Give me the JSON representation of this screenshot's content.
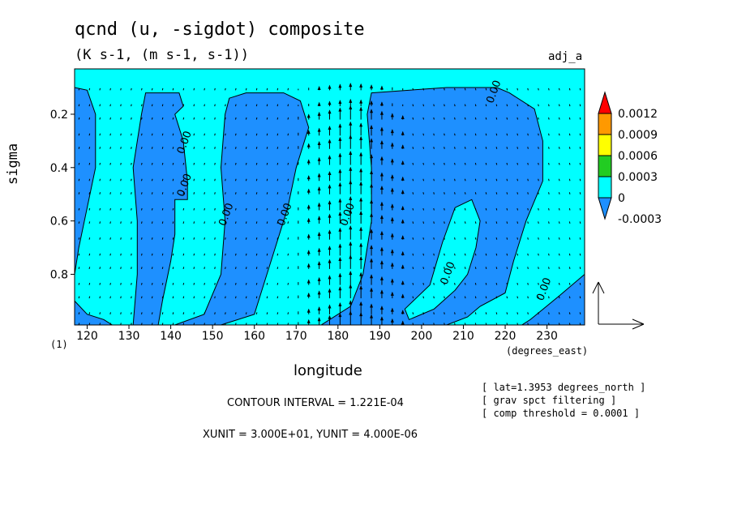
{
  "chart_data": {
    "type": "heatmap",
    "title": "qcnd (u, -sigdot) composite",
    "subtitle": "(K s-1, (m s-1, s-1))",
    "tag": "adj_a",
    "xlabel": "longitude",
    "ylabel": "sigma",
    "x_units": "(degrees_east)",
    "sublabel": "(1)",
    "xlim": [
      117,
      239
    ],
    "ylim": [
      0.03,
      0.99
    ],
    "y_inverted": true,
    "x_ticks": [
      120,
      130,
      140,
      150,
      160,
      170,
      180,
      190,
      200,
      210,
      220,
      230
    ],
    "y_ticks": [
      0.2,
      0.4,
      0.6,
      0.8
    ],
    "contour_label": "0.00",
    "colorbar": {
      "labels": [
        "0.0012",
        "0.0009",
        "0.0006",
        "0.0003",
        "0",
        "-0.0003"
      ],
      "colors": [
        "#ff0000",
        "#ff9900",
        "#ffff00",
        "#22cc22",
        "#00ffff",
        "#1e90ff"
      ]
    },
    "regions": [
      {
        "level": "-0.0003",
        "points": [
          [
            117,
            0.1
          ],
          [
            120,
            0.11
          ],
          [
            122,
            0.2
          ],
          [
            122,
            0.4
          ],
          [
            120,
            0.55
          ],
          [
            118,
            0.7
          ],
          [
            117,
            0.8
          ]
        ]
      },
      {
        "level": "-0.0003",
        "points": [
          [
            117,
            0.9
          ],
          [
            120,
            0.95
          ],
          [
            124,
            0.97
          ],
          [
            126,
            0.99
          ],
          [
            117,
            0.99
          ]
        ]
      },
      {
        "level": "-0.0003",
        "points": [
          [
            134,
            0.12
          ],
          [
            142,
            0.12
          ],
          [
            143,
            0.17
          ],
          [
            141,
            0.2
          ],
          [
            143,
            0.3
          ],
          [
            144,
            0.45
          ],
          [
            144,
            0.52
          ],
          [
            141,
            0.52
          ],
          [
            141,
            0.65
          ],
          [
            140,
            0.75
          ],
          [
            138,
            0.9
          ],
          [
            137,
            0.99
          ],
          [
            131,
            0.99
          ],
          [
            132,
            0.8
          ],
          [
            132,
            0.6
          ],
          [
            131,
            0.4
          ],
          [
            133,
            0.2
          ]
        ]
      },
      {
        "level": "-0.0003",
        "points": [
          [
            154,
            0.14
          ],
          [
            158,
            0.12
          ],
          [
            167,
            0.12
          ],
          [
            171,
            0.15
          ],
          [
            173,
            0.25
          ],
          [
            170,
            0.4
          ],
          [
            168,
            0.55
          ],
          [
            165,
            0.7
          ],
          [
            162,
            0.85
          ],
          [
            160,
            0.95
          ],
          [
            152,
            0.99
          ],
          [
            141,
            0.99
          ],
          [
            148,
            0.95
          ],
          [
            152,
            0.8
          ],
          [
            153,
            0.6
          ],
          [
            152,
            0.4
          ],
          [
            153,
            0.2
          ]
        ]
      },
      {
        "level": "-0.0003",
        "points": [
          [
            188,
            0.12
          ],
          [
            206,
            0.1
          ],
          [
            218,
            0.1
          ],
          [
            221,
            0.12
          ],
          [
            227,
            0.18
          ],
          [
            229,
            0.3
          ],
          [
            229,
            0.45
          ],
          [
            225,
            0.6
          ],
          [
            222,
            0.75
          ],
          [
            220,
            0.87
          ],
          [
            214,
            0.92
          ],
          [
            211,
            0.96
          ],
          [
            206,
            0.99
          ],
          [
            176,
            0.99
          ],
          [
            183,
            0.92
          ],
          [
            186,
            0.8
          ],
          [
            188,
            0.6
          ],
          [
            188,
            0.4
          ],
          [
            187,
            0.2
          ]
        ]
      },
      {
        "level": "-0.0003",
        "points": [
          [
            226,
            0.97
          ],
          [
            233,
            0.88
          ],
          [
            239,
            0.8
          ],
          [
            239,
            0.99
          ],
          [
            224,
            0.99
          ]
        ]
      },
      {
        "level": "0",
        "points": [
          [
            196,
            0.93
          ],
          [
            202,
            0.84
          ],
          [
            205,
            0.68
          ],
          [
            208,
            0.55
          ],
          [
            212,
            0.52
          ],
          [
            214,
            0.6
          ],
          [
            213,
            0.7
          ],
          [
            211,
            0.8
          ],
          [
            208,
            0.86
          ],
          [
            203,
            0.93
          ],
          [
            197,
            0.97
          ]
        ]
      }
    ],
    "arrow_field": {
      "x_step": 2.5,
      "y_levels": [
        0.11,
        0.17,
        0.22,
        0.28,
        0.33,
        0.39,
        0.45,
        0.5,
        0.56,
        0.61,
        0.67,
        0.73,
        0.78,
        0.84,
        0.89,
        0.95,
        0.99
      ],
      "strong_updraft_lon": [
        170,
        197
      ],
      "reference_vector": {
        "u": 30,
        "sigdot": 4e-06
      }
    },
    "contour_labels": [
      [
        144,
        0.31
      ],
      [
        144,
        0.47
      ],
      [
        154,
        0.58
      ],
      [
        168,
        0.58
      ],
      [
        183,
        0.58
      ],
      [
        207,
        0.8
      ],
      [
        218,
        0.12
      ],
      [
        230,
        0.86
      ]
    ],
    "info_lines": [
      "[ lat=1.3953 degrees_north ]",
      "[ grav spct filtering ]",
      "[ comp threshold = 0.0001 ]"
    ],
    "contour_interval": "CONTOUR INTERVAL = 1.221E-04",
    "units_line": "XUNIT = 3.000E+01, YUNIT = 4.000E-06"
  }
}
